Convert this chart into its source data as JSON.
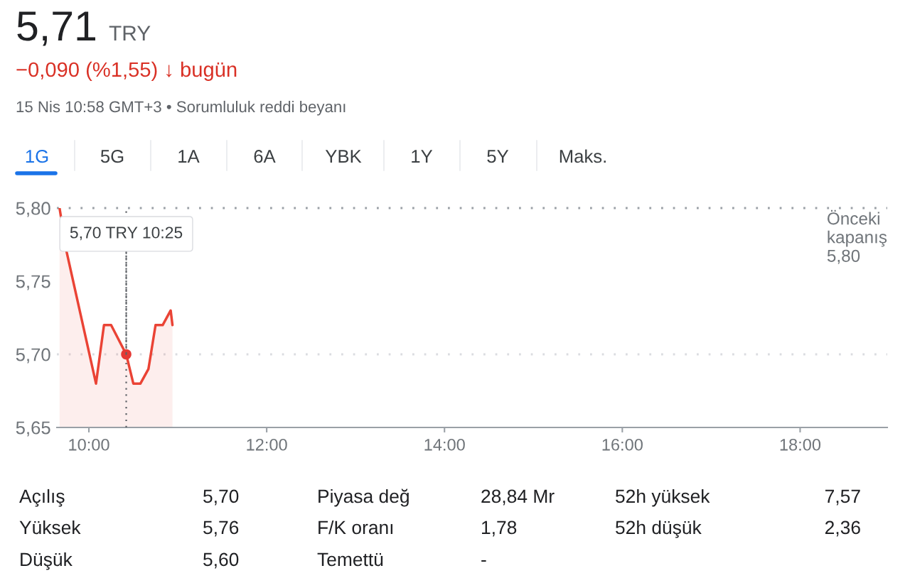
{
  "chart_data": {
    "type": "area",
    "title": "5,71",
    "subtitle": "−0,090 (%1,55) ↓ bugün",
    "annotations": [
      "TRY",
      "15 Nis 10:58 GMT+3 • Sorumluluk reddi beyanı",
      "1G",
      "5G",
      "1A",
      "6A",
      "YBK",
      "1Y",
      "5Y",
      "Maks.",
      "Açılış",
      "5,70",
      "Piyasa değ",
      "28,84 Mr",
      "52h yüksek",
      "7,57",
      "Yüksek",
      "5,76",
      "F/K oranı",
      "1,78",
      "52h düşük",
      "2,36",
      "Düşük",
      "5,60",
      "Temettü",
      "-",
      {
        "text": "5,70 TRY 10:25",
        "x": 10.42,
        "y": 5.7
      }
    ],
    "series": [
      {
        "color": "#ea4335",
        "x": [
          9.67,
          9.75,
          10.08,
          10.17,
          10.25,
          10.42,
          10.5,
          10.58,
          10.67,
          10.75,
          10.83,
          10.92,
          10.94
        ],
        "values": [
          5.8,
          5.77,
          5.68,
          5.72,
          5.72,
          5.7,
          5.68,
          5.68,
          5.69,
          5.72,
          5.72,
          5.73,
          5.72
        ]
      },
      {
        "type": "scatter",
        "color": "#e53935",
        "x": [
          10.42
        ],
        "values": [
          5.7
        ]
      }
    ],
    "xlim": [
      9.64,
      18.98
    ],
    "xticks": [
      {
        "value": 10,
        "label": "10:00"
      },
      {
        "value": 12,
        "label": "12:00"
      },
      {
        "value": 14,
        "label": "14:00"
      },
      {
        "value": 16,
        "label": "16:00"
      },
      {
        "value": 18,
        "label": "18:00"
      }
    ],
    "ylim": [
      5.65,
      5.8
    ],
    "yticks": [
      {
        "value": 5.65,
        "label": "5,65"
      },
      {
        "value": 5.7,
        "label": "5,70"
      },
      {
        "value": 5.75,
        "label": "5,75"
      },
      {
        "value": 5.8,
        "label": "5,80"
      }
    ],
    "ref_lines": [
      {
        "axis": "y",
        "value": 5.8,
        "label": "Önceki\nkapanış\n5,80",
        "line_style": "dotted",
        "color": "#9aa0a6"
      },
      {
        "axis": "y",
        "value": 5.7,
        "label": null,
        "line_style": "dotted",
        "color": "#dadce0"
      },
      {
        "axis": "x",
        "value": 10.42,
        "label": null,
        "line_style": "dotted",
        "color": "#5f6368"
      }
    ]
  }
}
